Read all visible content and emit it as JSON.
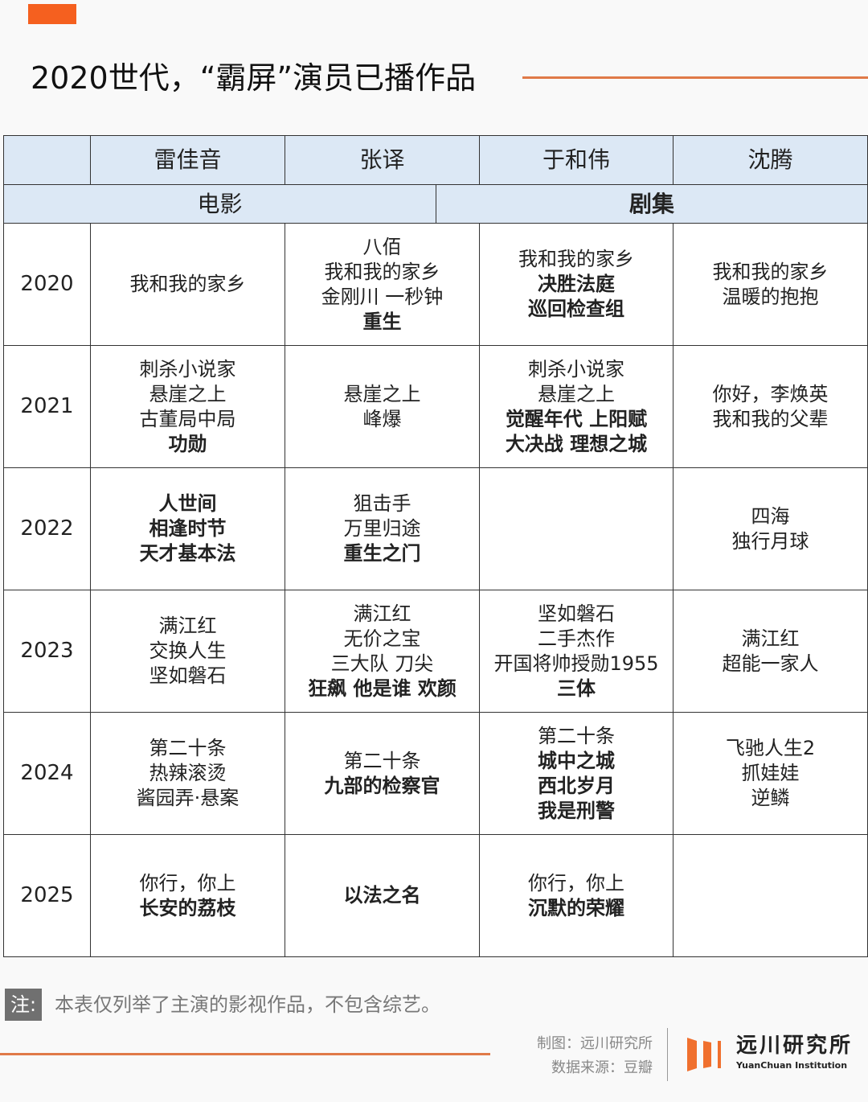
{
  "title": "2020世代，“霸屏”演员已播作品",
  "colors": {
    "accent": "#f5601f",
    "header_bg": "#dce8f5",
    "line": "#e07a48"
  },
  "actors": [
    "雷佳音",
    "张译",
    "于和伟",
    "沈腾"
  ],
  "categories": {
    "film": "电影",
    "series": "剧集"
  },
  "rows": [
    {
      "year": "2020",
      "cells": [
        [
          {
            "t": "我和我的家乡",
            "b": false
          }
        ],
        [
          {
            "t": "八佰",
            "b": false
          },
          {
            "t": "我和我的家乡",
            "b": false
          },
          {
            "t": "金刚川 一秒钟",
            "b": false
          },
          {
            "t": "重生",
            "b": true
          }
        ],
        [
          {
            "t": "我和我的家乡",
            "b": false
          },
          {
            "t": "决胜法庭",
            "b": true
          },
          {
            "t": "巡回检查组",
            "b": true
          }
        ],
        [
          {
            "t": "我和我的家乡",
            "b": false
          },
          {
            "t": "温暖的抱抱",
            "b": false
          }
        ]
      ]
    },
    {
      "year": "2021",
      "cells": [
        [
          {
            "t": "刺杀小说家",
            "b": false
          },
          {
            "t": "悬崖之上",
            "b": false
          },
          {
            "t": "古董局中局",
            "b": false
          },
          {
            "t": "功勋",
            "b": true
          }
        ],
        [
          {
            "t": "悬崖之上",
            "b": false
          },
          {
            "t": "峰爆",
            "b": false
          }
        ],
        [
          {
            "t": "刺杀小说家",
            "b": false
          },
          {
            "t": "悬崖之上",
            "b": false
          },
          {
            "t": "觉醒年代 上阳赋",
            "b": true
          },
          {
            "t": "大决战 理想之城",
            "b": true
          }
        ],
        [
          {
            "t": "你好，李焕英",
            "b": false
          },
          {
            "t": "我和我的父辈",
            "b": false
          }
        ]
      ]
    },
    {
      "year": "2022",
      "cells": [
        [
          {
            "t": "人世间",
            "b": true
          },
          {
            "t": "相逢时节",
            "b": true
          },
          {
            "t": "天才基本法",
            "b": true
          }
        ],
        [
          {
            "t": "狙击手",
            "b": false
          },
          {
            "t": "万里归途",
            "b": false
          },
          {
            "t": "重生之门",
            "b": true
          }
        ],
        [],
        [
          {
            "t": "四海",
            "b": false
          },
          {
            "t": "独行月球",
            "b": false
          }
        ]
      ]
    },
    {
      "year": "2023",
      "cells": [
        [
          {
            "t": "满江红",
            "b": false
          },
          {
            "t": "交换人生",
            "b": false
          },
          {
            "t": "坚如磐石",
            "b": false
          }
        ],
        [
          {
            "t": "满江红",
            "b": false
          },
          {
            "t": "无价之宝",
            "b": false
          },
          {
            "t": "三大队 刀尖",
            "b": false
          },
          {
            "t": "狂飙 他是谁 欢颜",
            "b": true
          }
        ],
        [
          {
            "t": "坚如磐石",
            "b": false
          },
          {
            "t": "二手杰作",
            "b": false
          },
          {
            "t": "开国将帅授勋1955",
            "b": false
          },
          {
            "t": "三体",
            "b": true
          }
        ],
        [
          {
            "t": "满江红",
            "b": false
          },
          {
            "t": "超能一家人",
            "b": false
          }
        ]
      ]
    },
    {
      "year": "2024",
      "cells": [
        [
          {
            "t": "第二十条",
            "b": false
          },
          {
            "t": "热辣滚烫",
            "b": false
          },
          {
            "t": "酱园弄·悬案",
            "b": false
          }
        ],
        [
          {
            "t": "第二十条",
            "b": false
          },
          {
            "t": "九部的检察官",
            "b": true
          }
        ],
        [
          {
            "t": "第二十条",
            "b": false
          },
          {
            "t": "城中之城",
            "b": true
          },
          {
            "t": "西北岁月",
            "b": true
          },
          {
            "t": "我是刑警",
            "b": true
          }
        ],
        [
          {
            "t": "飞驰人生2",
            "b": false
          },
          {
            "t": "抓娃娃",
            "b": false
          },
          {
            "t": "逆鳞",
            "b": false
          }
        ]
      ]
    },
    {
      "year": "2025",
      "cells": [
        [
          {
            "t": "你行，你上",
            "b": false
          },
          {
            "t": "长安的荔枝",
            "b": true
          }
        ],
        [
          {
            "t": "以法之名",
            "b": true
          }
        ],
        [
          {
            "t": "你行，你上",
            "b": false
          },
          {
            "t": "沉默的荣耀",
            "b": true
          }
        ],
        []
      ]
    }
  ],
  "note": {
    "tag": "注:",
    "text": "本表仅列举了主演的影视作品，不包含综艺。"
  },
  "credits": {
    "made_by": "制图：远川研究所",
    "source": "数据来源：豆瓣"
  },
  "logo": {
    "cn": "远川研究所",
    "en": "YuanChuan Institution"
  }
}
